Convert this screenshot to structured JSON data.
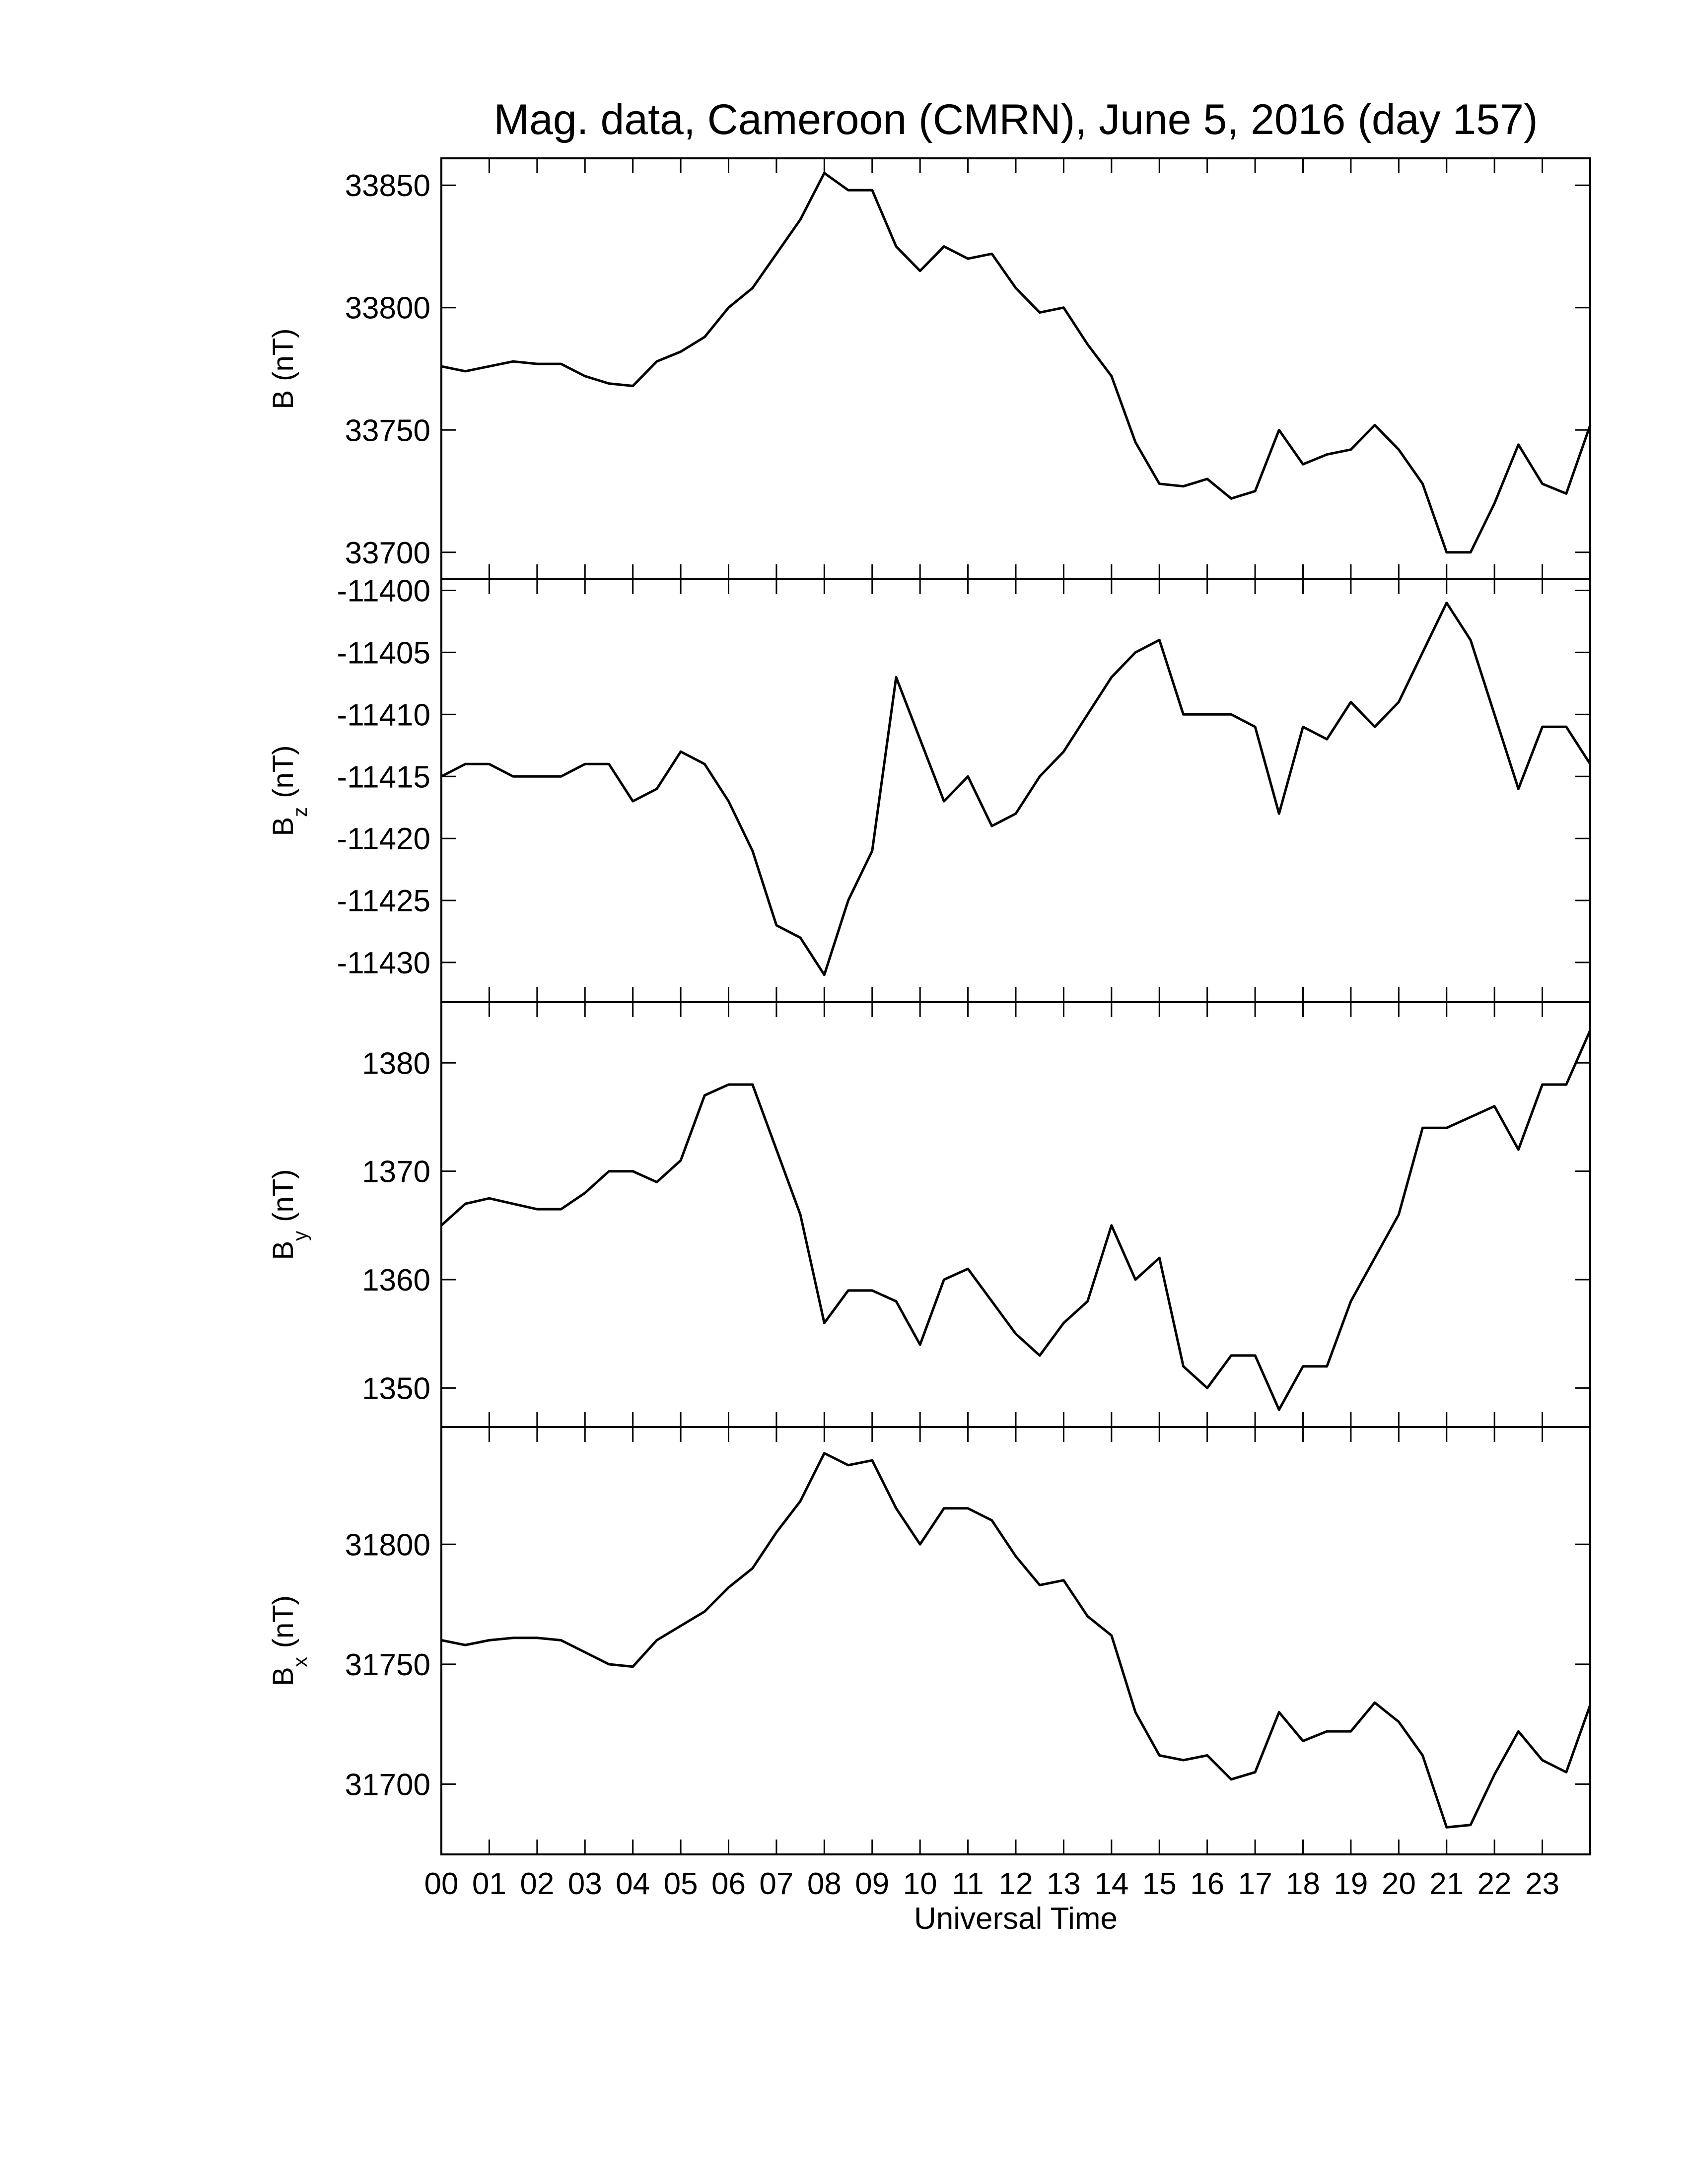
{
  "chart_data": [
    {
      "type": "line",
      "title": "Mag. data, Cameroon (CMRN), June 5, 2016 (day 157)",
      "ylabel": {
        "text": "B",
        "unit": "(nT)"
      },
      "x": [
        0,
        0.5,
        1,
        1.5,
        2,
        2.5,
        3,
        3.5,
        4,
        4.5,
        5,
        5.5,
        6,
        6.5,
        7,
        7.5,
        8,
        8.5,
        9,
        9.5,
        10,
        10.5,
        11,
        11.5,
        12,
        12.5,
        13,
        13.5,
        14,
        14.5,
        15,
        15.5,
        16,
        16.5,
        17,
        17.5,
        18,
        18.5,
        19,
        19.5,
        20,
        20.5,
        21,
        21.5,
        22,
        22.5,
        23,
        23.5,
        24
      ],
      "series": [
        {
          "color": "#000000",
          "values": [
            33776,
            33774,
            33776,
            33778,
            33777,
            33777,
            33772,
            33769,
            33768,
            33778,
            33782,
            33788,
            33800,
            33808,
            33822,
            33836,
            33855,
            33848,
            33848,
            33825,
            33815,
            33825,
            33820,
            33822,
            33808,
            33798,
            33800,
            33785,
            33772,
            33745,
            33728,
            33727,
            33730,
            33722,
            33725,
            33750,
            33736,
            33740,
            33742,
            33752,
            33742,
            33728,
            33700,
            33700,
            33720,
            33744,
            33728,
            33724,
            33752
          ]
        }
      ],
      "xlim": [
        0,
        24
      ],
      "ylim": [
        33689,
        33861
      ],
      "yticks": [
        33700,
        33750,
        33800,
        33850
      ]
    },
    {
      "type": "line",
      "ylabel": {
        "text": "B",
        "subscript": "z",
        "unit": "(nT)"
      },
      "x": [
        0,
        0.5,
        1,
        1.5,
        2,
        2.5,
        3,
        3.5,
        4,
        4.5,
        5,
        5.5,
        6,
        6.5,
        7,
        7.5,
        8,
        8.5,
        9,
        9.5,
        10,
        10.5,
        11,
        11.5,
        12,
        12.5,
        13,
        13.5,
        14,
        14.5,
        15,
        15.5,
        16,
        16.5,
        17,
        17.5,
        18,
        18.5,
        19,
        19.5,
        20,
        20.5,
        21,
        21.5,
        22,
        22.5,
        23,
        23.5,
        24
      ],
      "series": [
        {
          "color": "#000000",
          "values": [
            -11415,
            -11414,
            -11414,
            -11415,
            -11415,
            -11415,
            -11414,
            -11414,
            -11417,
            -11416,
            -11413,
            -11414,
            -11417,
            -11421,
            -11427,
            -11428,
            -11431,
            -11425,
            -11421,
            -11407,
            -11412,
            -11417,
            -11415,
            -11419,
            -11418,
            -11415,
            -11413,
            -11410,
            -11407,
            -11405,
            -11404,
            -11410,
            -11410,
            -11410,
            -11411,
            -11418,
            -11411,
            -11412,
            -11409,
            -11411,
            -11409,
            -11405,
            -11401,
            -11404,
            -11410,
            -11416,
            -11411,
            -11411,
            -11414
          ]
        }
      ],
      "xlim": [
        0,
        24
      ],
      "ylim": [
        -11433.2,
        -11399.1
      ],
      "yticks": [
        -11430,
        -11425,
        -11420,
        -11415,
        -11410,
        -11405,
        -11400
      ]
    },
    {
      "type": "line",
      "ylabel": {
        "text": "B",
        "subscript": "y",
        "unit": "(nT)"
      },
      "x": [
        0,
        0.5,
        1,
        1.5,
        2,
        2.5,
        3,
        3.5,
        4,
        4.5,
        5,
        5.5,
        6,
        6.5,
        7,
        7.5,
        8,
        8.5,
        9,
        9.5,
        10,
        10.5,
        11,
        11.5,
        12,
        12.5,
        13,
        13.5,
        14,
        14.5,
        15,
        15.5,
        16,
        16.5,
        17,
        17.5,
        18,
        18.5,
        19,
        19.5,
        20,
        20.5,
        21,
        21.5,
        22,
        22.5,
        23,
        23.5,
        24
      ],
      "series": [
        {
          "color": "#000000",
          "values": [
            1365,
            1367,
            1367.5,
            1367,
            1366.5,
            1366.5,
            1368,
            1370,
            1370,
            1369,
            1371,
            1377,
            1378,
            1378,
            1372,
            1366,
            1356,
            1359,
            1359,
            1358,
            1354,
            1360,
            1361,
            1358,
            1355,
            1353,
            1356,
            1358,
            1365,
            1360,
            1362,
            1352,
            1350,
            1353,
            1353,
            1348,
            1352,
            1352,
            1358,
            1362,
            1366,
            1374,
            1374,
            1375,
            1376,
            1372,
            1378,
            1378,
            1383
          ]
        }
      ],
      "xlim": [
        0,
        24
      ],
      "ylim": [
        1346.4,
        1385.6
      ],
      "yticks": [
        1350,
        1360,
        1370,
        1380
      ]
    },
    {
      "type": "line",
      "xlabel": "Universal Time",
      "ylabel": {
        "text": "B",
        "subscript": "x",
        "unit": "(nT)"
      },
      "x": [
        0,
        0.5,
        1,
        1.5,
        2,
        2.5,
        3,
        3.5,
        4,
        4.5,
        5,
        5.5,
        6,
        6.5,
        7,
        7.5,
        8,
        8.5,
        9,
        9.5,
        10,
        10.5,
        11,
        11.5,
        12,
        12.5,
        13,
        13.5,
        14,
        14.5,
        15,
        15.5,
        16,
        16.5,
        17,
        17.5,
        18,
        18.5,
        19,
        19.5,
        20,
        20.5,
        21,
        21.5,
        22,
        22.5,
        23,
        23.5,
        24
      ],
      "series": [
        {
          "color": "#000000",
          "values": [
            31760,
            31758,
            31760,
            31761,
            31761,
            31760,
            31755,
            31750,
            31749,
            31760,
            31766,
            31772,
            31782,
            31790,
            31805,
            31818,
            31838,
            31833,
            31835,
            31815,
            31800,
            31815,
            31815,
            31810,
            31795,
            31783,
            31785,
            31770,
            31762,
            31730,
            31712,
            31710,
            31712,
            31702,
            31705,
            31730,
            31718,
            31722,
            31722,
            31734,
            31726,
            31712,
            31682,
            31683,
            31704,
            31722,
            31710,
            31705,
            31733
          ]
        }
      ],
      "xlim": [
        0,
        24
      ],
      "ylim": [
        31670.7,
        31848.9
      ],
      "yticks": [
        31700,
        31750,
        31800
      ],
      "xticks": [
        {
          "value": 0,
          "label": "00"
        },
        {
          "value": 1,
          "label": "01"
        },
        {
          "value": 2,
          "label": "02"
        },
        {
          "value": 3,
          "label": "03"
        },
        {
          "value": 4,
          "label": "04"
        },
        {
          "value": 5,
          "label": "05"
        },
        {
          "value": 6,
          "label": "06"
        },
        {
          "value": 7,
          "label": "07"
        },
        {
          "value": 8,
          "label": "08"
        },
        {
          "value": 9,
          "label": "09"
        },
        {
          "value": 10,
          "label": "10"
        },
        {
          "value": 11,
          "label": "11"
        },
        {
          "value": 12,
          "label": "12"
        },
        {
          "value": 13,
          "label": "13"
        },
        {
          "value": 14,
          "label": "14"
        },
        {
          "value": 15,
          "label": "15"
        },
        {
          "value": 16,
          "label": "16"
        },
        {
          "value": 17,
          "label": "17"
        },
        {
          "value": 18,
          "label": "18"
        },
        {
          "value": 19,
          "label": "19"
        },
        {
          "value": 20,
          "label": "20"
        },
        {
          "value": 21,
          "label": "21"
        },
        {
          "value": 22,
          "label": "22"
        },
        {
          "value": 23,
          "label": "23"
        }
      ]
    }
  ]
}
